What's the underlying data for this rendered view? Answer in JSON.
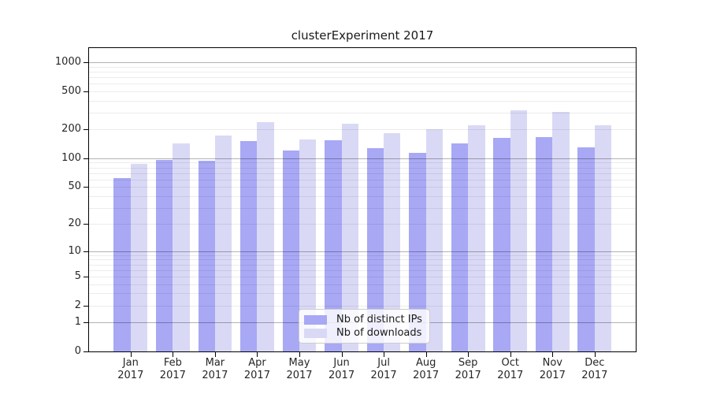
{
  "title": "clusterExperiment 2017",
  "chart_data": {
    "type": "bar",
    "title": "clusterExperiment 2017",
    "categories": [
      "Jan 2017",
      "Feb 2017",
      "Mar 2017",
      "Apr 2017",
      "May 2017",
      "Jun 2017",
      "Jul 2017",
      "Aug 2017",
      "Sep 2017",
      "Oct 2017",
      "Nov 2017",
      "Dec 2017"
    ],
    "series": [
      {
        "name": "Nb of distinct IPs",
        "color": "#a8a8f5",
        "values": [
          62,
          96,
          95,
          152,
          121,
          155,
          128,
          114,
          144,
          164,
          167,
          130
        ]
      },
      {
        "name": "Nb of downloads",
        "color": "#d9d9f6",
        "values": [
          88,
          144,
          174,
          240,
          158,
          230,
          184,
          201,
          221,
          318,
          304,
          220
        ]
      }
    ],
    "xlabel": "",
    "ylabel": "",
    "yscale": "log1p",
    "ylim": [
      0,
      1404
    ],
    "yticks": [
      0,
      1,
      2,
      5,
      10,
      20,
      50,
      100,
      200,
      500,
      1000
    ],
    "major_grid_values": [
      1,
      10,
      100,
      1000
    ],
    "minor_grid_values": [
      2,
      3,
      4,
      5,
      6,
      7,
      8,
      9,
      20,
      30,
      40,
      50,
      60,
      70,
      80,
      90,
      200,
      300,
      400,
      500,
      600,
      700,
      800,
      900
    ],
    "grid": true,
    "legend_position": "inside-bottom-center"
  },
  "colors": {
    "bar_distinct_ips": "#a8a8f5",
    "bar_downloads": "#d9d9f6",
    "major_grid": "#b3b3b3",
    "minor_grid": "#e8e8e8",
    "spine": "#000000",
    "text": "#262626",
    "legend_background": "rgba(255,255,255,0.82)",
    "legend_border": "#cccccc"
  }
}
